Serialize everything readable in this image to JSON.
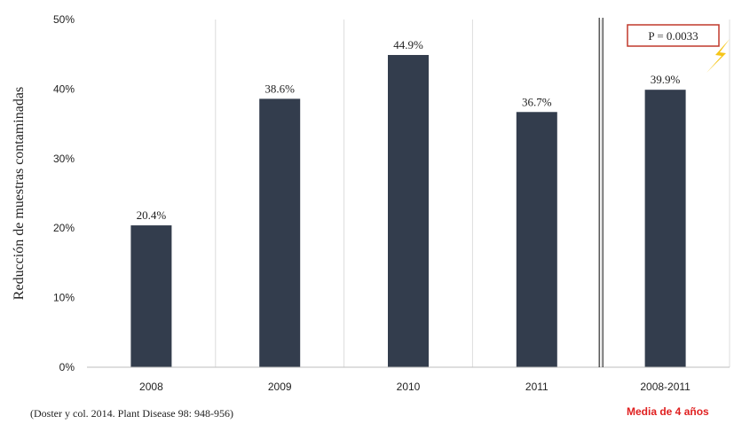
{
  "chart_data": {
    "type": "bar",
    "categories": [
      "2008",
      "2009",
      "2010",
      "2011",
      "2008-2011"
    ],
    "values": [
      20.4,
      38.6,
      44.9,
      36.7,
      39.9
    ],
    "value_labels": [
      "20.4%",
      "38.6%",
      "44.9%",
      "36.7%",
      "39.9%"
    ],
    "title": "",
    "xlabel": "",
    "ylabel": "Reducción de muestras contaminadas",
    "ylim": [
      0,
      50
    ],
    "yticks": [
      0,
      10,
      20,
      30,
      40,
      50
    ],
    "ytick_labels": [
      "0%",
      "10%",
      "20%",
      "30%",
      "40%",
      "50%"
    ],
    "grid": "vertical",
    "bar_color": "#333d4d",
    "annotation": {
      "text": "P = 0.0033",
      "box_color": "#c0392b",
      "icon": "lightning-bolt-icon",
      "icon_color": "#f5c518"
    }
  },
  "footer": {
    "citation": "(Doster y col. 2014. Plant Disease 98: 948-956)",
    "note": "Media de 4 años",
    "note_color": "#e02020"
  }
}
